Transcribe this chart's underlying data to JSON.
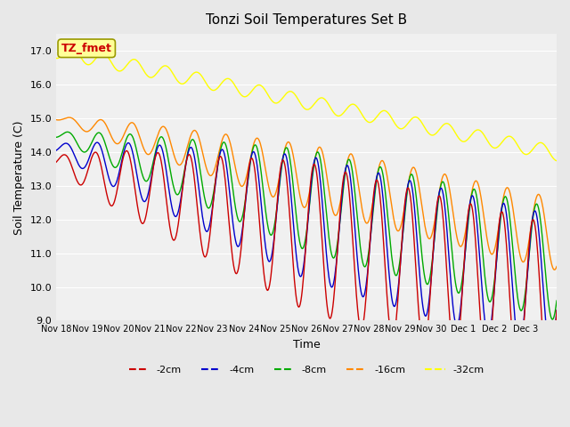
{
  "title": "Tonzi Soil Temperatures Set B",
  "xlabel": "Time",
  "ylabel": "Soil Temperature (C)",
  "ylim": [
    9.0,
    17.5
  ],
  "yticks": [
    9.0,
    10.0,
    11.0,
    12.0,
    13.0,
    14.0,
    15.0,
    16.0,
    17.0
  ],
  "x_tick_labels": [
    "Nov 18",
    "Nov 19",
    "Nov 20",
    "Nov 21",
    "Nov 22",
    "Nov 23",
    "Nov 24",
    "Nov 25",
    "Nov 26",
    "Nov 27",
    "Nov 28",
    "Nov 29",
    "Nov 30",
    "Dec 1",
    "Dec 2",
    "Dec 3"
  ],
  "annotation_label": "TZ_fmet",
  "legend_labels": [
    "-2cm",
    "-4cm",
    "-8cm",
    "-16cm",
    "-32cm"
  ],
  "colors": {
    "2cm": "#cc0000",
    "4cm": "#0000cc",
    "8cm": "#00aa00",
    "16cm": "#ff8800",
    "32cm": "#ffff00"
  },
  "bg_color": "#e8e8e8",
  "plot_bg": "#f0f0f0",
  "grid_color": "#ffffff",
  "n_days": 16,
  "points_per_day": 48
}
